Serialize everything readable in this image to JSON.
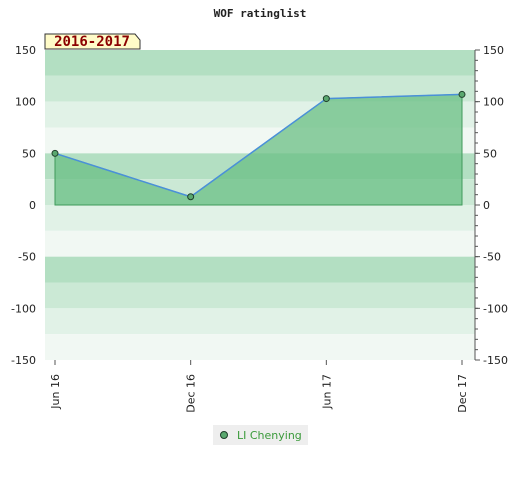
{
  "chart_data": {
    "type": "area",
    "title": "WOF ratinglist",
    "season_label": "2016-2017",
    "categories": [
      "Jun 16",
      "Dec 16",
      "Jun 17",
      "Dec 17"
    ],
    "series": [
      {
        "name": "LI Chenying",
        "values": [
          50,
          8,
          103,
          107
        ]
      }
    ],
    "ylim": [
      -150,
      150
    ],
    "yticks": [
      150,
      100,
      50,
      0,
      -50,
      -100,
      -150
    ],
    "legend_position": "bottom-center",
    "grid": true,
    "colors": {
      "band_dark": "#b3dfc2",
      "band_mid": "#cbe9d5",
      "band_light": "#e1f2e7",
      "band_lightest": "#f1f8f3",
      "area_fill": "#6abf84",
      "line": "#4a90d9",
      "marker": "#5aa86f",
      "season_bg": "#fffbc8",
      "legend_text": "#3a9a3a"
    }
  }
}
